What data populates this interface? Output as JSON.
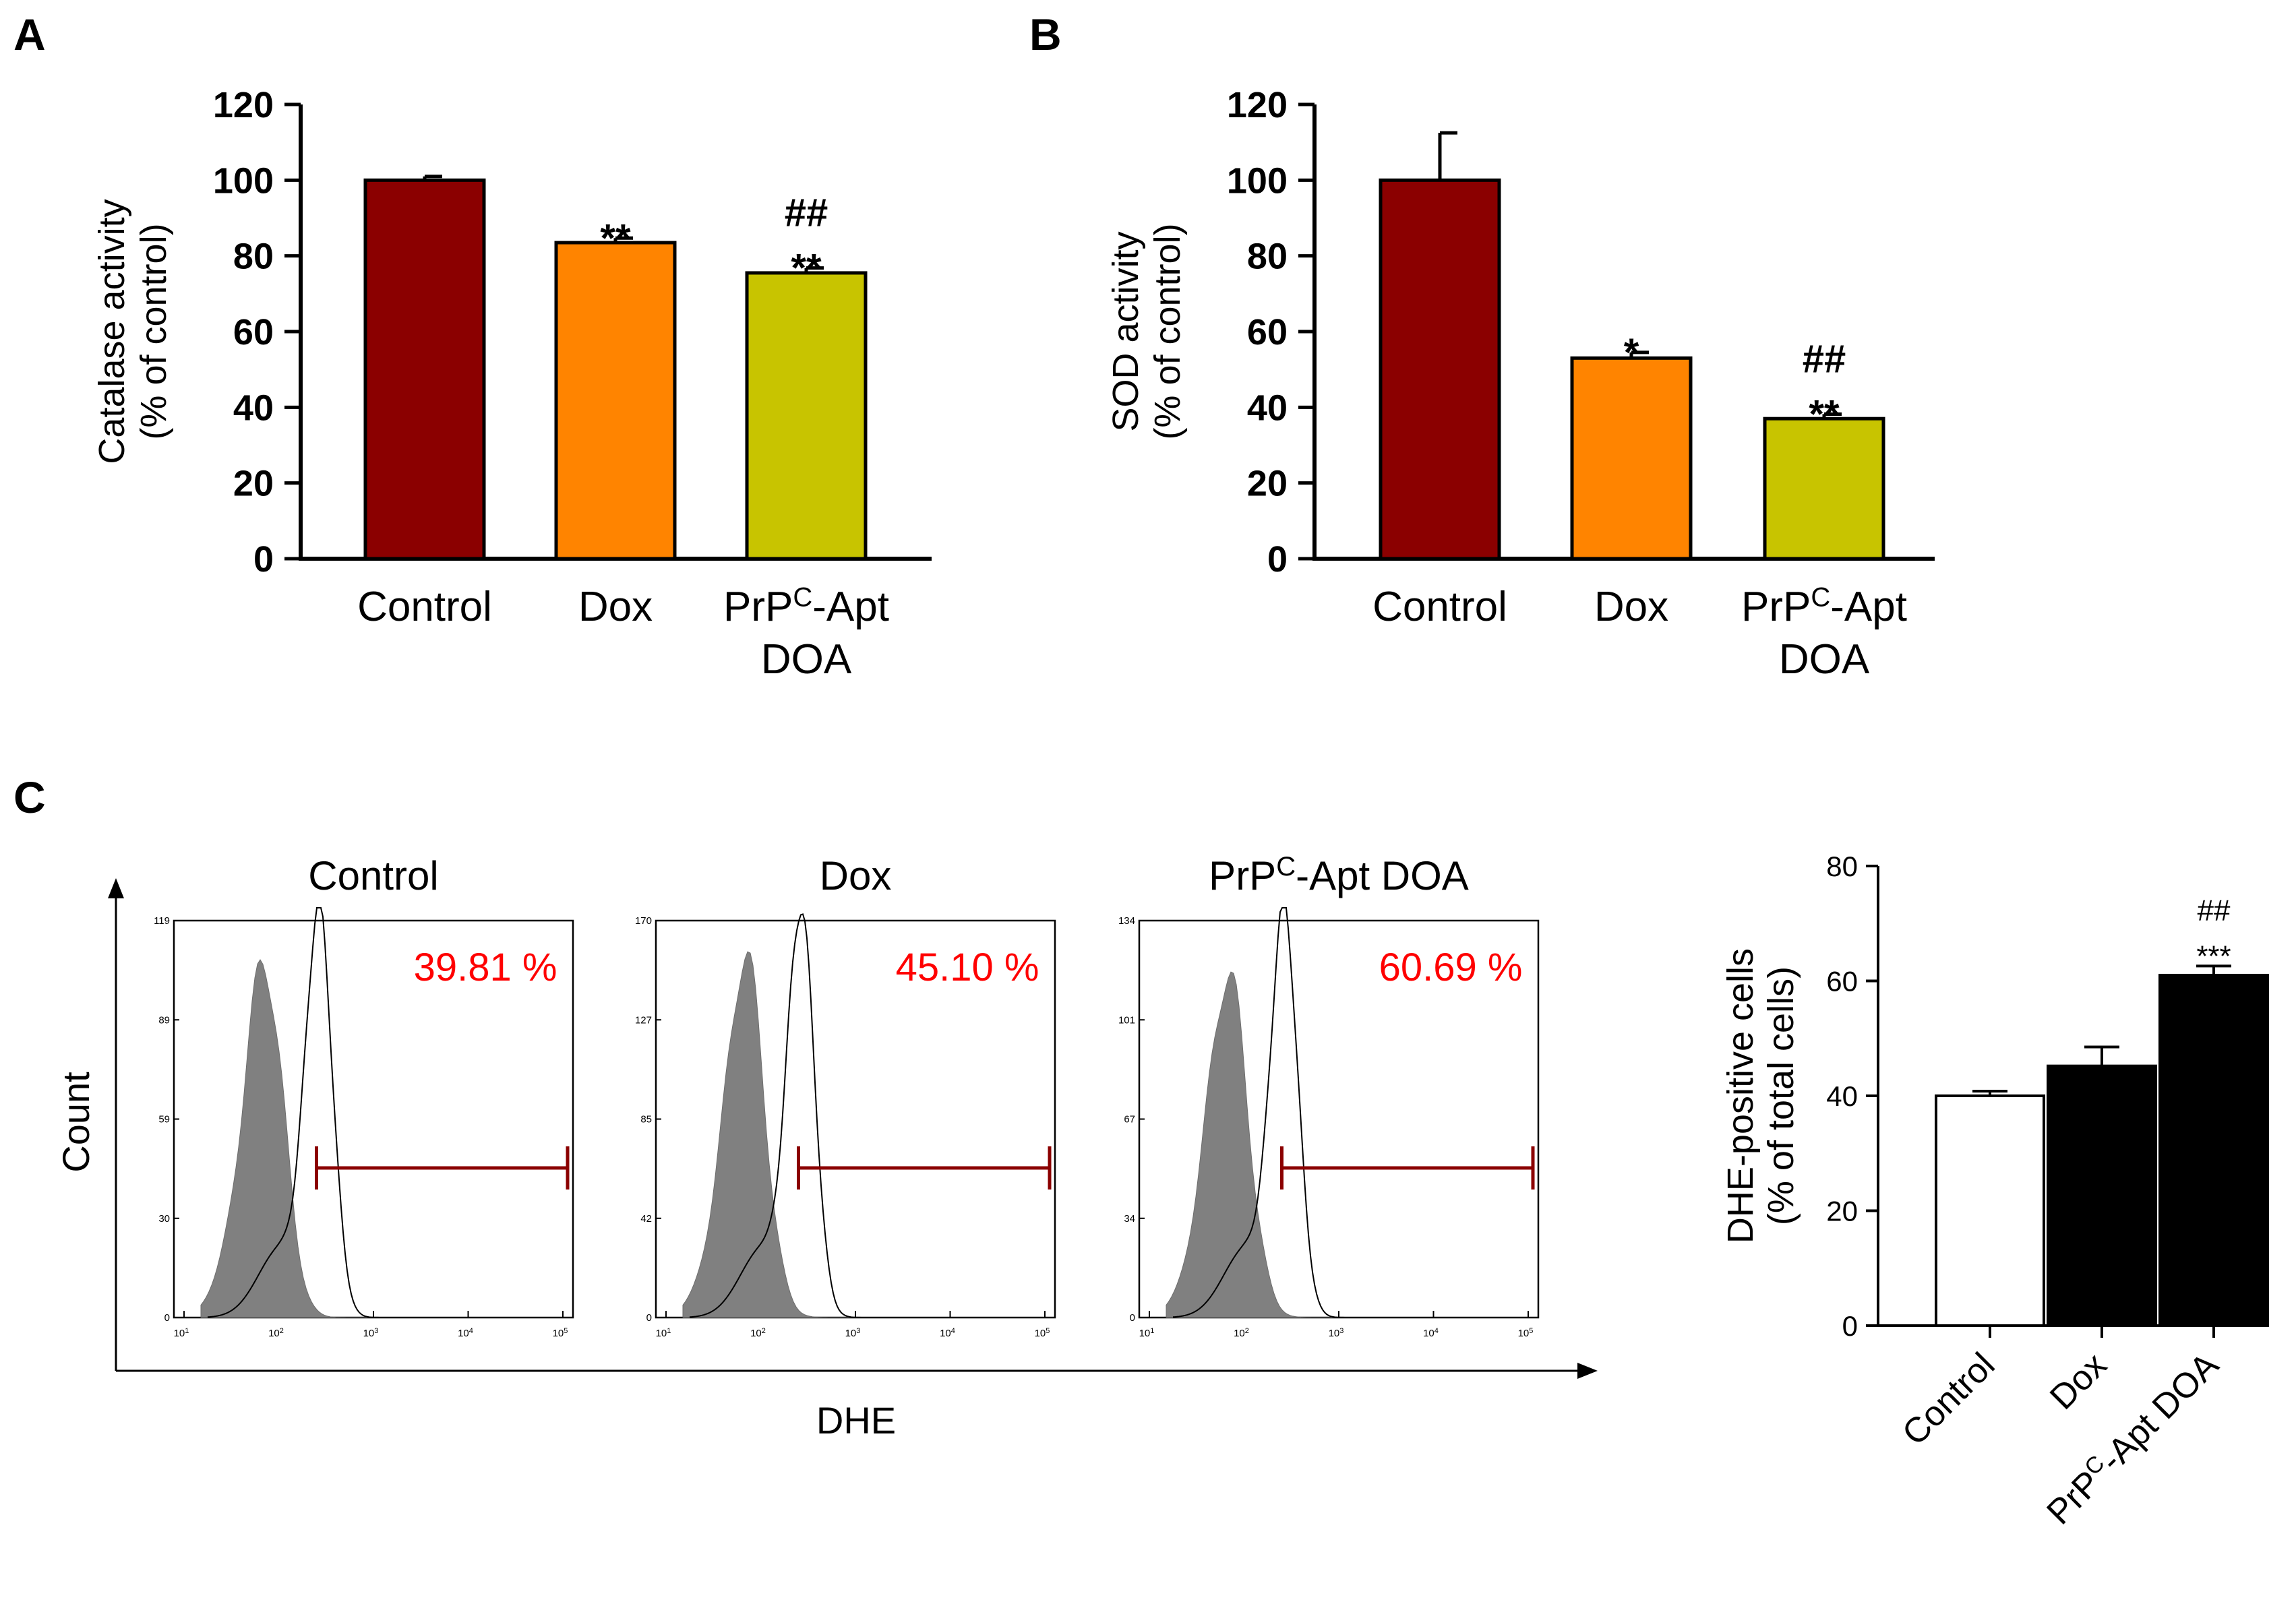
{
  "panel_a": {
    "letter": "A",
    "chart_data": {
      "type": "bar",
      "categories": [
        [
          "Control"
        ],
        [
          "Dox"
        ],
        [
          "PrP",
          "C",
          "-Apt",
          "DOA"
        ]
      ],
      "values": [
        100,
        83.5,
        75.5
      ],
      "errors": [
        1.0,
        1.2,
        1.3
      ],
      "colors": [
        "#8b0000",
        "#ff8400",
        "#c8c400"
      ],
      "significance": [
        [],
        [
          "**"
        ],
        [
          "##",
          "**"
        ]
      ],
      "ylabel": [
        "Catalase activity",
        "(% of control)"
      ],
      "ylim": [
        0,
        120
      ],
      "yticks": [
        "0",
        "20",
        "40",
        "60",
        "80",
        "100",
        "120"
      ]
    }
  },
  "panel_b": {
    "letter": "B",
    "chart_data": {
      "type": "bar",
      "categories": [
        [
          "Control"
        ],
        [
          "Dox"
        ],
        [
          "PrP",
          "C",
          "-Apt",
          "DOA"
        ]
      ],
      "values": [
        100,
        53,
        37
      ],
      "errors": [
        12.5,
        1.5,
        1.2
      ],
      "colors": [
        "#8b0000",
        "#ff8400",
        "#c8c400"
      ],
      "significance": [
        [],
        [
          "*"
        ],
        [
          "##",
          "**"
        ]
      ],
      "ylabel": [
        "SOD activity",
        "(% of control)"
      ],
      "ylim": [
        0,
        120
      ],
      "yticks": [
        "0",
        "20",
        "40",
        "60",
        "80",
        "100",
        "120"
      ]
    }
  },
  "panel_c": {
    "letter": "C",
    "flow": {
      "ylabel": "Count",
      "xlabel": "DHE",
      "x_tick_labels": [
        "10",
        "10",
        "10",
        "10",
        "10"
      ],
      "x_tick_exponents": [
        "1",
        "2",
        "3",
        "4",
        "5"
      ],
      "histograms": [
        {
          "title": "Control",
          "percent": "39.81 %",
          "y_ticks": [
            "0",
            "30",
            "59",
            "89",
            "119"
          ]
        },
        {
          "title": "Dox",
          "percent": "45.10 %",
          "y_ticks": [
            "0",
            "42",
            "85",
            "127",
            "170"
          ]
        },
        {
          "title_main": "PrP",
          "title_sup": "C",
          "title_rest": "-Apt DOA",
          "percent": "60.69 %",
          "y_ticks": [
            "0",
            "34",
            "67",
            "101",
            "134"
          ]
        }
      ]
    },
    "chart_data": {
      "type": "bar",
      "categories": [
        "Control",
        "Dox",
        "PrPC-Apt DOA"
      ],
      "category_labels": [
        [
          "Control"
        ],
        [
          "Dox"
        ],
        [
          "PrP",
          "C",
          "-Apt DOA"
        ]
      ],
      "values": [
        40,
        45.2,
        61
      ],
      "errors": [
        0.8,
        3.3,
        1.6
      ],
      "colors": [
        "#ffffff",
        "#000000",
        "#000000"
      ],
      "significance": [
        [],
        [],
        [
          "##",
          "***"
        ]
      ],
      "ylabel": [
        "DHE-positive cells",
        "(% of total cells)"
      ],
      "ylim": [
        0,
        80
      ],
      "yticks": [
        "0",
        "20",
        "40",
        "60",
        "80"
      ]
    }
  }
}
